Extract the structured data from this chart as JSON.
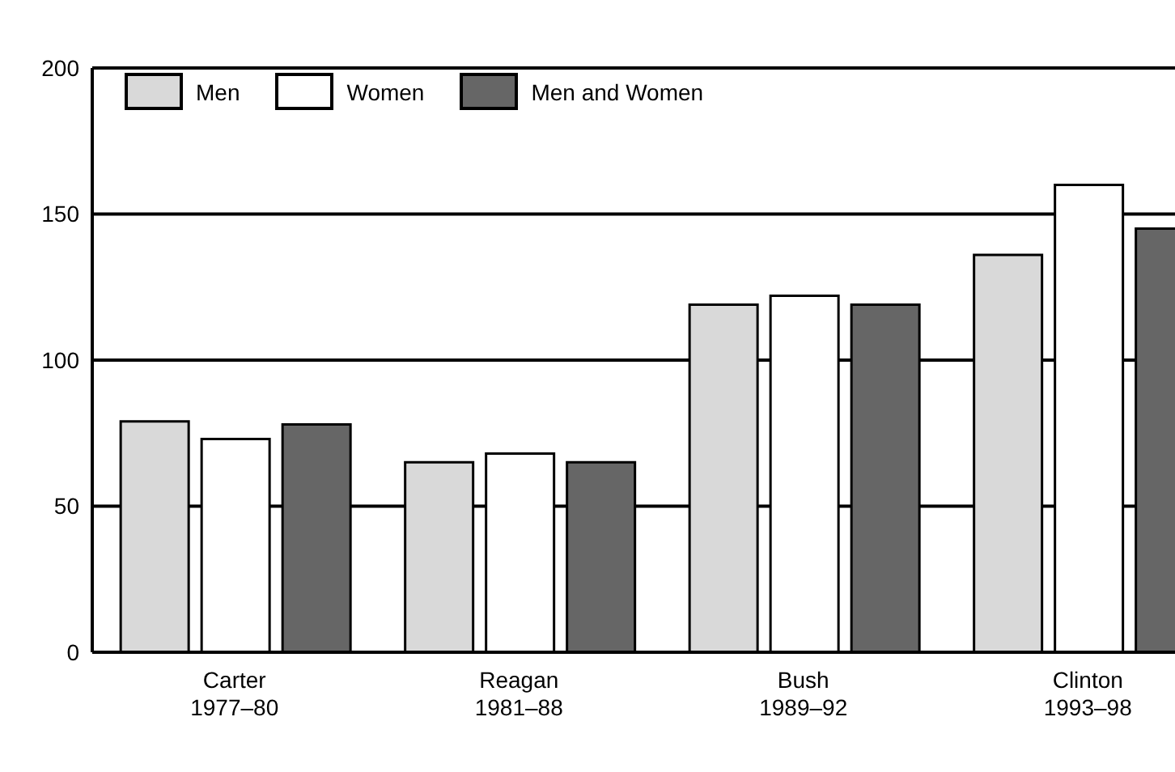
{
  "chart_data": {
    "type": "bar",
    "categories": [
      "Carter\n1977–80",
      "Reagan\n1981–88",
      "Bush\n1989–92",
      "Clinton\n1993–98"
    ],
    "series": [
      {
        "name": "Men",
        "color": "#d9d9d9",
        "values": [
          79,
          65,
          119,
          136
        ]
      },
      {
        "name": "Women",
        "color": "#ffffff",
        "values": [
          73,
          68,
          122,
          160
        ]
      },
      {
        "name": "Men and Women",
        "color": "#666666",
        "values": [
          78,
          65,
          119,
          145
        ]
      }
    ],
    "ylim": [
      0,
      200
    ],
    "yticks": [
      0,
      50,
      100,
      150,
      200
    ],
    "grid": "y",
    "legend": "top left"
  }
}
